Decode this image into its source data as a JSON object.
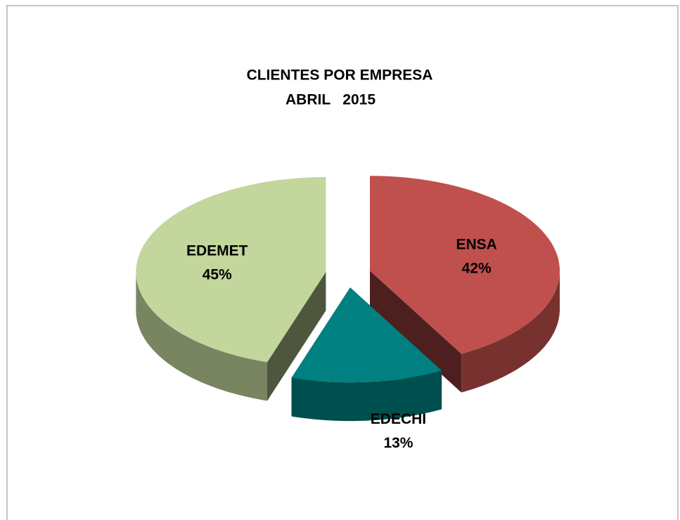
{
  "chart_data": {
    "type": "pie3d",
    "title": "CLIENTES POR EMPRESA",
    "subtitle": "ABRIL   2015",
    "categories": [
      "ENSA",
      "EDECHI",
      "EDEMET"
    ],
    "values": [
      42,
      13,
      45
    ],
    "value_labels": [
      "42%",
      "13%",
      "45%"
    ],
    "colors": [
      "#c0504d",
      "#008080",
      "#c3d69b"
    ]
  }
}
